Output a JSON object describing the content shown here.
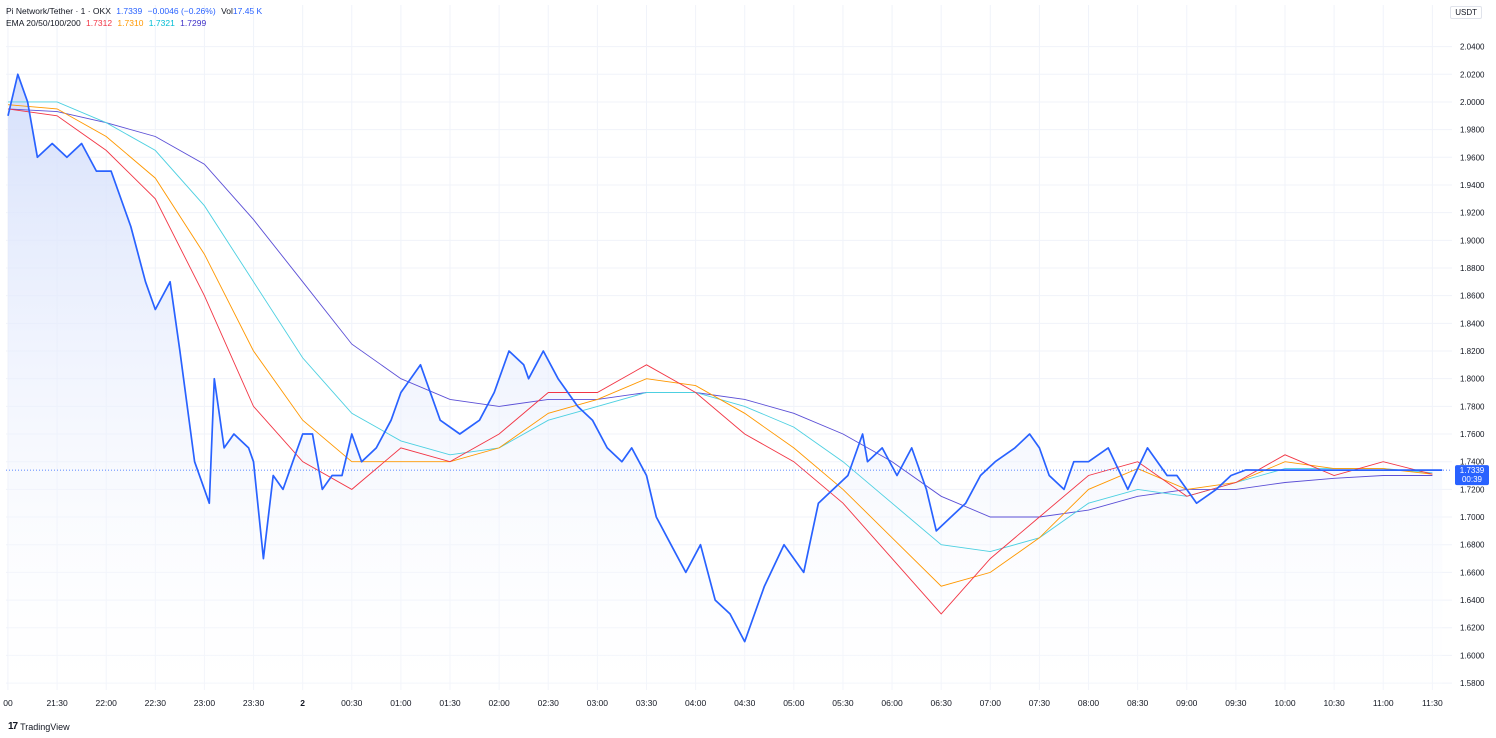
{
  "header": {
    "symbol": "Pi Network/Tether · 1 · OKX",
    "last": "1.7339",
    "change": "−0.0046 (−0.26%)",
    "vol_label": "Vol",
    "vol_value": "17.45 K",
    "ema_label": "EMA 20/50/100/200",
    "ema_values": [
      "1.7312",
      "1.7310",
      "1.7321",
      "1.7299"
    ]
  },
  "quote_currency": "USDT",
  "price_tag": {
    "price": "1.7339",
    "countdown": "00:39"
  },
  "brand": "TradingView",
  "colors": {
    "price": "#2962ff",
    "ema20": "#f23645",
    "ema50": "#ff9800",
    "ema100": "#4dd0e1",
    "ema200": "#5b4fd6",
    "grid": "#f0f3fa",
    "axis_text": "#131722",
    "fill_top": "#d3defb",
    "fill_bottom": "#ffffff"
  },
  "chart_data": {
    "type": "line",
    "title": "Pi Network/Tether · 1 · OKX",
    "ylim": [
      1.575,
      2.052
    ],
    "y_ticks": [
      "2.0400",
      "2.0200",
      "2.0000",
      "1.9800",
      "1.9600",
      "1.9400",
      "1.9200",
      "1.9000",
      "1.8800",
      "1.8600",
      "1.8400",
      "1.8200",
      "1.8000",
      "1.7800",
      "1.7600",
      "1.7400",
      "1.7200",
      "1.7000",
      "1.6800",
      "1.6600",
      "1.6400",
      "1.6200",
      "1.6000",
      "1.5800"
    ],
    "x_ticks": [
      "00",
      "21:30",
      "22:00",
      "22:30",
      "23:00",
      "23:30",
      "2",
      "00:30",
      "01:00",
      "01:30",
      "02:00",
      "02:30",
      "03:00",
      "03:30",
      "04:00",
      "04:30",
      "05:00",
      "05:30",
      "06:00",
      "06:30",
      "07:00",
      "07:30",
      "08:00",
      "08:30",
      "09:00",
      "09:30",
      "10:00",
      "10:30",
      "11:00",
      "11:30"
    ],
    "x_tick_hours": [
      0,
      0.5,
      1,
      1.5,
      2,
      2.5,
      3,
      3.5,
      4,
      4.5,
      5,
      5.5,
      6,
      6.5,
      7,
      7.5,
      8,
      8.5,
      9,
      9.5,
      10,
      10.5,
      11,
      11.5,
      12,
      12.5,
      13,
      13.5,
      14,
      14.5
    ],
    "x_hours_range": [
      -0.02,
      14.7
    ],
    "grid": true,
    "series": [
      {
        "name": "Pi Network/Tether",
        "key": "price",
        "x": [
          0,
          0.1,
          0.2,
          0.3,
          0.45,
          0.6,
          0.75,
          0.9,
          1.05,
          1.25,
          1.4,
          1.5,
          1.65,
          1.75,
          1.9,
          2.05,
          2.1,
          2.2,
          2.3,
          2.45,
          2.5,
          2.6,
          2.7,
          2.8,
          2.9,
          3.0,
          3.1,
          3.2,
          3.3,
          3.4,
          3.5,
          3.6,
          3.75,
          3.9,
          4.0,
          4.2,
          4.4,
          4.6,
          4.8,
          4.95,
          5.1,
          5.25,
          5.3,
          5.45,
          5.6,
          5.8,
          5.95,
          6.1,
          6.25,
          6.35,
          6.5,
          6.6,
          6.75,
          6.9,
          7.05,
          7.2,
          7.35,
          7.5,
          7.7,
          7.9,
          8.1,
          8.25,
          8.4,
          8.55,
          8.7,
          8.75,
          8.9,
          9.05,
          9.2,
          9.35,
          9.45,
          9.6,
          9.75,
          9.9,
          10.05,
          10.25,
          10.4,
          10.5,
          10.6,
          10.75,
          10.85,
          11.0,
          11.2,
          11.4,
          11.6,
          11.8,
          11.9,
          12.1,
          12.3,
          12.45,
          12.6,
          12.75,
          12.85,
          12.95,
          13.1,
          13.25,
          13.4,
          13.55,
          13.75,
          13.85,
          14.0,
          14.1,
          14.3,
          14.4,
          14.5,
          14.6
        ],
        "y": [
          1.99,
          2.02,
          2.0,
          1.96,
          1.97,
          1.96,
          1.97,
          1.95,
          1.95,
          1.91,
          1.87,
          1.85,
          1.87,
          1.82,
          1.74,
          1.71,
          1.8,
          1.75,
          1.76,
          1.75,
          1.74,
          1.67,
          1.73,
          1.72,
          1.74,
          1.76,
          1.76,
          1.72,
          1.73,
          1.73,
          1.76,
          1.74,
          1.75,
          1.77,
          1.79,
          1.81,
          1.77,
          1.76,
          1.77,
          1.79,
          1.82,
          1.81,
          1.8,
          1.82,
          1.8,
          1.78,
          1.77,
          1.75,
          1.74,
          1.75,
          1.73,
          1.7,
          1.68,
          1.66,
          1.68,
          1.64,
          1.63,
          1.61,
          1.65,
          1.68,
          1.66,
          1.71,
          1.72,
          1.73,
          1.76,
          1.74,
          1.75,
          1.73,
          1.75,
          1.72,
          1.69,
          1.7,
          1.71,
          1.73,
          1.74,
          1.75,
          1.76,
          1.75,
          1.73,
          1.72,
          1.74,
          1.74,
          1.75,
          1.72,
          1.75,
          1.73,
          1.73,
          1.71,
          1.72,
          1.73,
          1.734,
          1.7339,
          1.7339,
          1.7339,
          1.7339,
          1.7339,
          1.7339,
          1.7339,
          1.7339,
          1.7339,
          1.7339,
          1.7339,
          1.7339,
          1.7339,
          1.7339,
          1.7339
        ]
      },
      {
        "name": "EMA 20",
        "key": "ema20",
        "x": [
          0,
          0.5,
          1,
          1.5,
          2,
          2.5,
          3,
          3.5,
          4,
          4.5,
          5,
          5.5,
          6,
          6.5,
          7,
          7.5,
          8,
          8.5,
          9,
          9.5,
          10,
          10.5,
          11,
          11.5,
          12,
          12.5,
          13,
          13.5,
          14,
          14.5
        ],
        "y": [
          1.995,
          1.99,
          1.965,
          1.93,
          1.86,
          1.78,
          1.74,
          1.72,
          1.75,
          1.74,
          1.76,
          1.79,
          1.79,
          1.81,
          1.79,
          1.76,
          1.74,
          1.71,
          1.67,
          1.63,
          1.67,
          1.7,
          1.73,
          1.74,
          1.715,
          1.725,
          1.745,
          1.73,
          1.74,
          1.731
        ]
      },
      {
        "name": "EMA 50",
        "key": "ema50",
        "x": [
          0,
          0.5,
          1,
          1.5,
          2,
          2.5,
          3,
          3.5,
          4,
          4.5,
          5,
          5.5,
          6,
          6.5,
          7,
          7.5,
          8,
          8.5,
          9,
          9.5,
          10,
          10.5,
          11,
          11.5,
          12,
          12.5,
          13,
          13.5,
          14,
          14.5
        ],
        "y": [
          1.998,
          1.995,
          1.975,
          1.945,
          1.89,
          1.82,
          1.77,
          1.74,
          1.74,
          1.74,
          1.75,
          1.775,
          1.785,
          1.8,
          1.795,
          1.775,
          1.75,
          1.72,
          1.685,
          1.65,
          1.66,
          1.685,
          1.72,
          1.735,
          1.72,
          1.725,
          1.74,
          1.735,
          1.735,
          1.731
        ]
      },
      {
        "name": "EMA 100",
        "key": "ema100",
        "x": [
          0,
          0.5,
          1,
          1.5,
          2,
          2.5,
          3,
          3.5,
          4,
          4.5,
          5,
          5.5,
          6,
          6.5,
          7,
          7.5,
          8,
          8.5,
          9,
          9.5,
          10,
          10.5,
          11,
          11.5,
          12,
          12.5,
          13,
          13.5,
          14,
          14.5
        ],
        "y": [
          2.0,
          2.0,
          1.985,
          1.965,
          1.925,
          1.87,
          1.815,
          1.775,
          1.755,
          1.745,
          1.75,
          1.77,
          1.78,
          1.79,
          1.79,
          1.78,
          1.765,
          1.74,
          1.71,
          1.68,
          1.675,
          1.685,
          1.71,
          1.72,
          1.715,
          1.725,
          1.735,
          1.735,
          1.735,
          1.732
        ]
      },
      {
        "name": "EMA 200",
        "key": "ema200",
        "x": [
          0,
          0.5,
          1,
          1.5,
          2,
          2.5,
          3,
          3.5,
          4,
          4.5,
          5,
          5.5,
          6,
          6.5,
          7,
          7.5,
          8,
          8.5,
          9,
          9.5,
          10,
          10.5,
          11,
          11.5,
          12,
          12.5,
          13,
          13.5,
          14,
          14.5
        ],
        "y": [
          1.995,
          1.993,
          1.985,
          1.975,
          1.955,
          1.915,
          1.87,
          1.825,
          1.8,
          1.785,
          1.78,
          1.785,
          1.785,
          1.79,
          1.79,
          1.785,
          1.775,
          1.76,
          1.74,
          1.715,
          1.7,
          1.7,
          1.705,
          1.715,
          1.72,
          1.72,
          1.725,
          1.728,
          1.73,
          1.73
        ]
      }
    ]
  }
}
